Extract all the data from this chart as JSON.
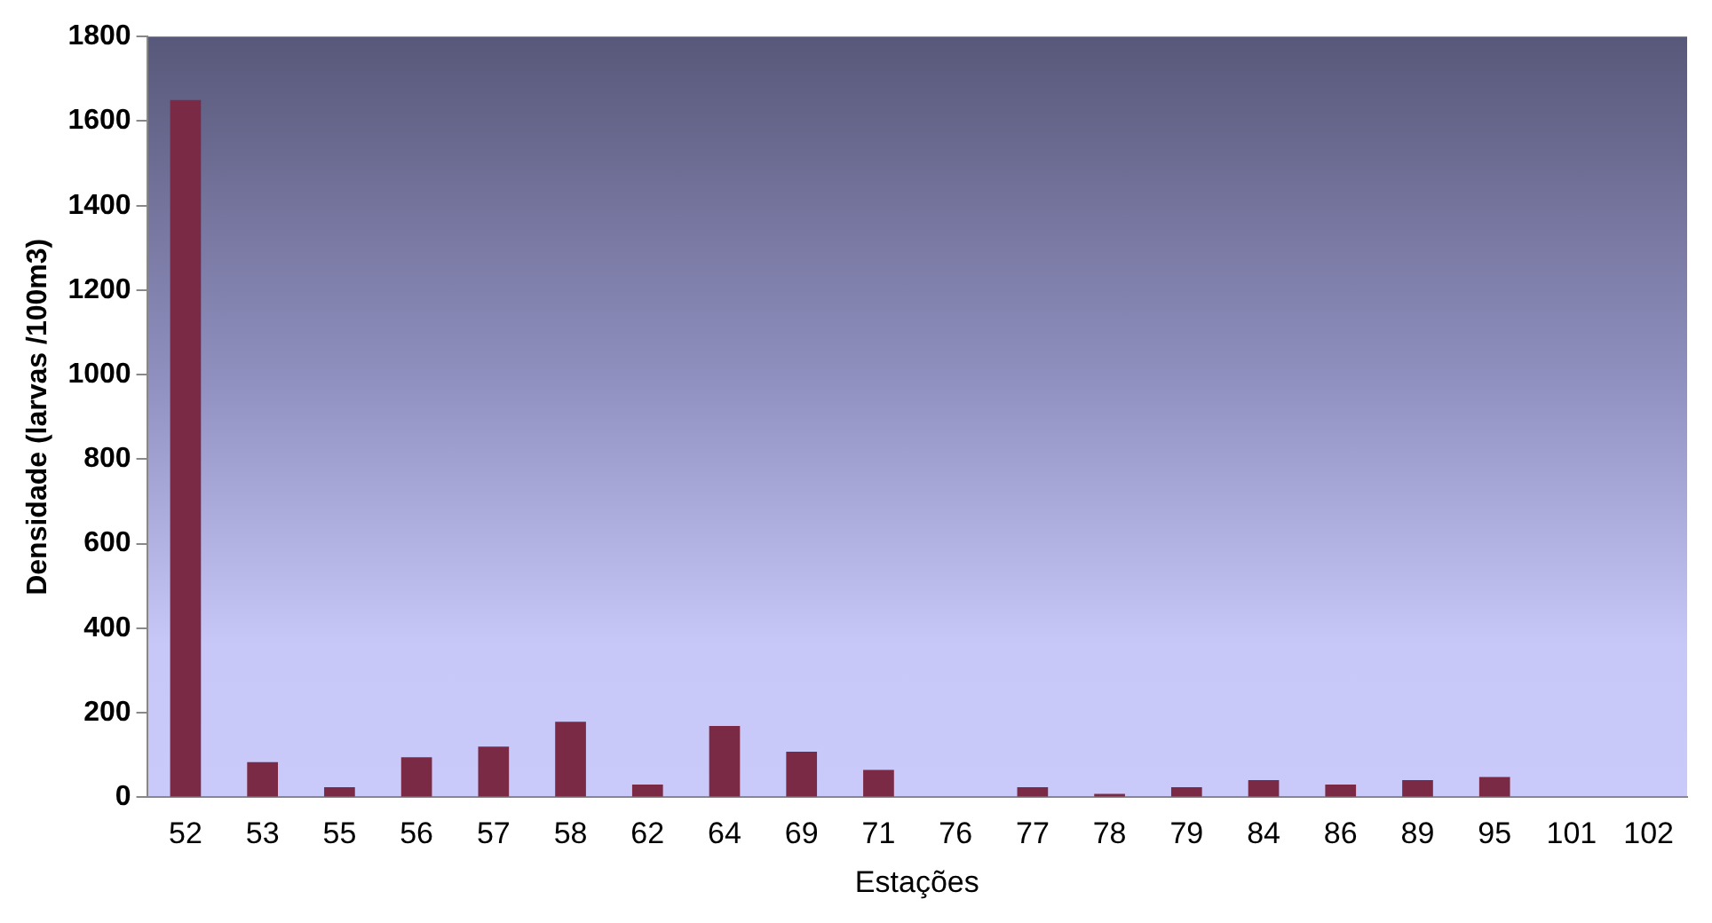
{
  "chart_data": {
    "type": "bar",
    "xlabel": "Estações",
    "ylabel": "Densidade (larvas /100m3)",
    "categories": [
      "52",
      "53",
      "55",
      "56",
      "57",
      "58",
      "62",
      "64",
      "69",
      "71",
      "76",
      "77",
      "78",
      "79",
      "84",
      "86",
      "89",
      "95",
      "101",
      "102"
    ],
    "values": [
      1650,
      83,
      24,
      95,
      120,
      179,
      30,
      169,
      108,
      65,
      0,
      24,
      8,
      24,
      41,
      30,
      41,
      48,
      0,
      0
    ],
    "color": "#7a2a45",
    "ylim": [
      0,
      1800
    ],
    "yticks": [
      0,
      200,
      400,
      600,
      800,
      1000,
      1200,
      1400,
      1600,
      1800
    ],
    "grid": false,
    "legend": false
  }
}
